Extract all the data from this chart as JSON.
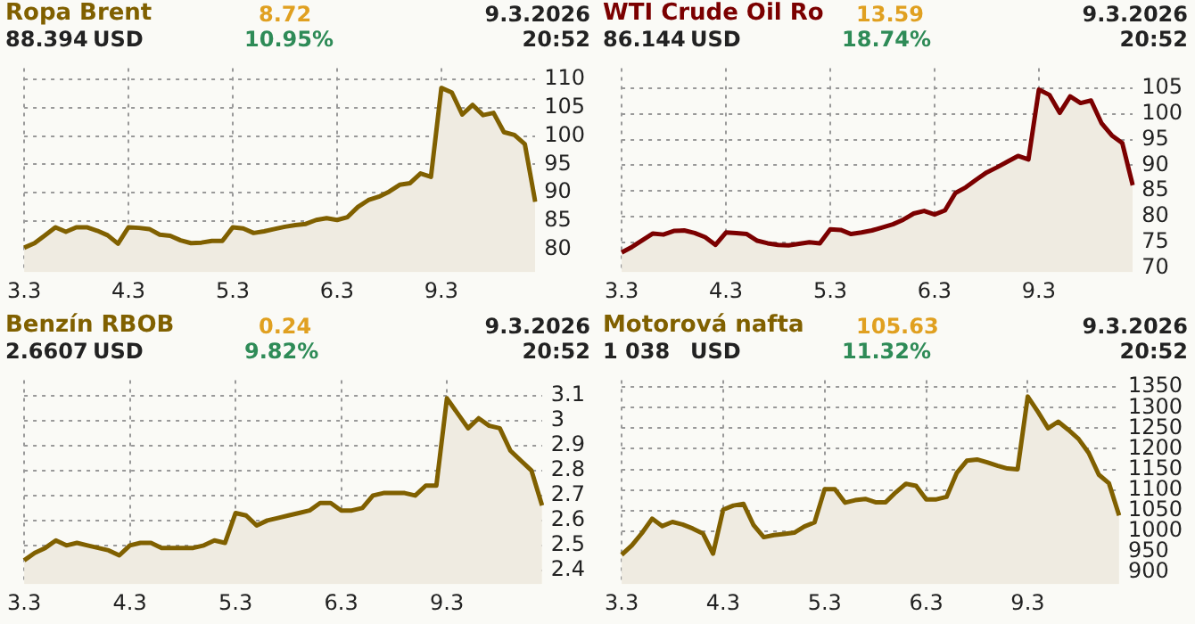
{
  "chart_data": [
    {
      "type": "area",
      "title": "Ropa Brent",
      "annotations": [
        "88.394",
        "USD",
        "8.72",
        "10.95%",
        "9.3.2026",
        "20:52"
      ],
      "categories": [
        "3.3",
        null,
        null,
        null,
        null,
        null,
        null,
        null,
        null,
        null,
        "4.3",
        null,
        null,
        null,
        null,
        null,
        null,
        null,
        null,
        null,
        "5.3",
        null,
        null,
        null,
        null,
        null,
        null,
        null,
        null,
        null,
        "6.3",
        null,
        null,
        null,
        null,
        null,
        null,
        null,
        null,
        null,
        "9.3",
        null,
        null,
        null,
        null,
        null,
        null,
        null,
        null,
        null
      ],
      "series": [
        {
          "color": "#806000",
          "values": [
            80.3,
            81.1,
            82.5,
            83.9,
            83.1,
            83.9,
            83.9,
            83.3,
            82.5,
            81.0,
            83.9,
            83.8,
            83.6,
            82.6,
            82.4,
            81.6,
            81.1,
            81.2,
            81.5,
            81.5,
            83.9,
            83.7,
            82.9,
            83.2,
            83.6,
            84,
            84.3,
            84.5,
            85.2,
            85.5,
            85.2,
            85.7,
            87.5,
            88.7,
            89.3,
            90.2,
            91.4,
            91.7,
            93.4,
            92.8,
            108.5,
            107.7,
            103.8,
            105.5,
            103.7,
            104.1,
            100.7,
            100.2,
            98.6,
            88.4
          ]
        }
      ],
      "ylim": [
        76,
        112
      ],
      "yticks": [
        80,
        85,
        90,
        95,
        100,
        105,
        110
      ],
      "grid": true
    },
    {
      "type": "area",
      "title": "WTI Crude Oil Ro",
      "annotations": [
        "86.144",
        "USD",
        "13.59",
        "18.74%",
        "9.3.2026",
        "20:52"
      ],
      "categories": [
        "3.3",
        null,
        null,
        null,
        null,
        null,
        null,
        null,
        null,
        null,
        "4.3",
        null,
        null,
        null,
        null,
        null,
        null,
        null,
        null,
        null,
        "5.3",
        null,
        null,
        null,
        null,
        null,
        null,
        null,
        null,
        null,
        "6.3",
        null,
        null,
        null,
        null,
        null,
        null,
        null,
        null,
        null,
        "9.3",
        null,
        null,
        null,
        null,
        null,
        null,
        null,
        null,
        null
      ],
      "series": [
        {
          "color": "#7b0000",
          "values": [
            73,
            74.1,
            75.4,
            76.7,
            76.5,
            77.2,
            77.3,
            76.8,
            76,
            74.5,
            76.9,
            76.8,
            76.6,
            75.3,
            74.8,
            74.5,
            74.4,
            74.7,
            75,
            74.8,
            77.5,
            77.4,
            76.6,
            76.9,
            77.3,
            77.9,
            78.5,
            79.4,
            80.6,
            81.1,
            80.4,
            81.2,
            84.6,
            85.7,
            87.2,
            88.6,
            89.6,
            90.7,
            91.8,
            91.1,
            104.7,
            103.7,
            100.2,
            103.4,
            102.1,
            102.6,
            98.2,
            95.8,
            94.3,
            86.1
          ]
        }
      ],
      "ylim": [
        69.2,
        108.9
      ],
      "yticks": [
        70,
        75,
        80,
        85,
        90,
        95,
        100,
        105
      ],
      "grid": true
    },
    {
      "type": "area",
      "title": "Benzín RBOB",
      "annotations": [
        "2.6607",
        "USD",
        "0.24",
        "9.82%",
        "9.3.2026",
        "20:52"
      ],
      "categories": [
        "3.3",
        null,
        null,
        null,
        null,
        null,
        null,
        null,
        null,
        null,
        "4.3",
        null,
        null,
        null,
        null,
        null,
        null,
        null,
        null,
        null,
        "5.3",
        null,
        null,
        null,
        null,
        null,
        null,
        null,
        null,
        null,
        "6.3",
        null,
        null,
        null,
        null,
        null,
        null,
        null,
        null,
        null,
        "9.3",
        null,
        null,
        null,
        null,
        null,
        null,
        null,
        null,
        null
      ],
      "series": [
        {
          "color": "#806000",
          "values": [
            2.44,
            2.47,
            2.49,
            2.52,
            2.5,
            2.51,
            2.5,
            2.49,
            2.48,
            2.46,
            2.5,
            2.51,
            2.51,
            2.49,
            2.49,
            2.49,
            2.49,
            2.5,
            2.52,
            2.51,
            2.63,
            2.62,
            2.58,
            2.6,
            2.61,
            2.62,
            2.63,
            2.64,
            2.67,
            2.67,
            2.64,
            2.64,
            2.65,
            2.7,
            2.71,
            2.71,
            2.71,
            2.7,
            2.74,
            2.74,
            3.09,
            3.03,
            2.97,
            3.01,
            2.98,
            2.97,
            2.88,
            2.84,
            2.8,
            2.66
          ]
        }
      ],
      "ylim": [
        2.345,
        3.163
      ],
      "yticks": [
        2.4,
        2.5,
        2.6,
        2.7,
        2.8,
        2.9,
        3,
        3.1
      ],
      "grid": true
    },
    {
      "type": "area",
      "title": "Motorová nafta",
      "annotations": [
        "1 038",
        "USD",
        "105.63",
        "11.32%",
        "9.3.2026",
        "20:52"
      ],
      "categories": [
        "3.3",
        null,
        null,
        null,
        null,
        null,
        null,
        null,
        null,
        null,
        "4.3",
        null,
        null,
        null,
        null,
        null,
        null,
        null,
        null,
        null,
        "5.3",
        null,
        null,
        null,
        null,
        null,
        null,
        null,
        null,
        null,
        "6.3",
        null,
        null,
        null,
        null,
        null,
        null,
        null,
        null,
        null,
        "9.3",
        null,
        null,
        null,
        null,
        null,
        null,
        null,
        null,
        null
      ],
      "series": [
        {
          "color": "#806000",
          "values": [
            942,
            965,
            995,
            1030,
            1012,
            1022,
            1016,
            1006,
            994,
            945,
            1052,
            1062,
            1066,
            1014,
            985,
            990,
            993,
            996,
            1011,
            1021,
            1102,
            1102,
            1069,
            1075,
            1078,
            1070,
            1070,
            1094,
            1115,
            1110,
            1077,
            1077,
            1083,
            1141,
            1171,
            1174,
            1167,
            1159,
            1152,
            1150,
            1327,
            1290,
            1250,
            1266,
            1246,
            1224,
            1190,
            1137,
            1116,
            1038
          ]
        }
      ],
      "ylim": [
        871,
        1367
      ],
      "yticks": [
        900,
        950,
        1000,
        1050,
        1100,
        1150,
        1200,
        1250,
        1300,
        1350
      ],
      "grid": true
    }
  ]
}
